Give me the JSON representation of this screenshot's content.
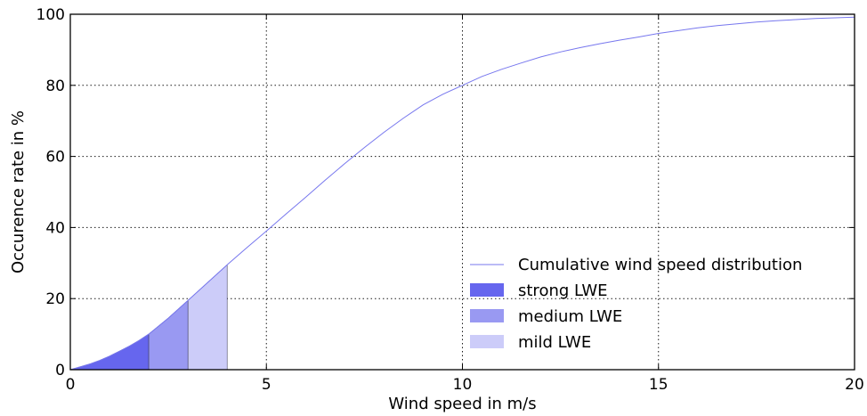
{
  "chart_data": {
    "type": "area",
    "title": "",
    "xlabel": "Wind speed in m/s",
    "ylabel": "Occurence rate in %",
    "xlim": [
      0,
      20
    ],
    "ylim": [
      0,
      100
    ],
    "xticks": [
      0,
      5,
      10,
      15,
      20
    ],
    "yticks": [
      0,
      20,
      40,
      60,
      80,
      100
    ],
    "grid": true,
    "legend_position": "lower-right",
    "series": [
      {
        "name": "Cumulative wind speed distribution",
        "kind": "line",
        "color": "#7777ee",
        "x": [
          0,
          0.25,
          0.5,
          0.75,
          1,
          1.25,
          1.5,
          1.75,
          2,
          2.5,
          3,
          3.5,
          4,
          4.5,
          5,
          5.5,
          6,
          6.5,
          7,
          7.5,
          8,
          8.5,
          9,
          9.5,
          10,
          10.5,
          11,
          11.5,
          12,
          12.5,
          13,
          13.5,
          14,
          14.5,
          15,
          15.5,
          16,
          16.5,
          17,
          17.5,
          18,
          18.5,
          19,
          19.5,
          20
        ],
        "y": [
          0,
          0.8,
          1.6,
          2.6,
          3.8,
          5.2,
          6.6,
          8.2,
          10,
          14.5,
          19.5,
          24.5,
          29.5,
          34.3,
          39,
          43.8,
          48.5,
          53.3,
          58,
          62.5,
          66.8,
          70.8,
          74.5,
          77.5,
          80,
          82.5,
          84.5,
          86.3,
          88,
          89.4,
          90.6,
          91.7,
          92.7,
          93.6,
          94.6,
          95.4,
          96.2,
          96.8,
          97.3,
          97.8,
          98.2,
          98.5,
          98.8,
          99,
          99.2
        ]
      },
      {
        "name": "strong LWE",
        "kind": "fill",
        "color": "#6666ee",
        "x_range": [
          0,
          2
        ]
      },
      {
        "name": "medium LWE",
        "kind": "fill",
        "color": "#9999f2",
        "x_range": [
          2,
          3
        ]
      },
      {
        "name": "mild LWE",
        "kind": "fill",
        "color": "#ccccf9",
        "x_range": [
          3,
          4
        ]
      }
    ]
  }
}
